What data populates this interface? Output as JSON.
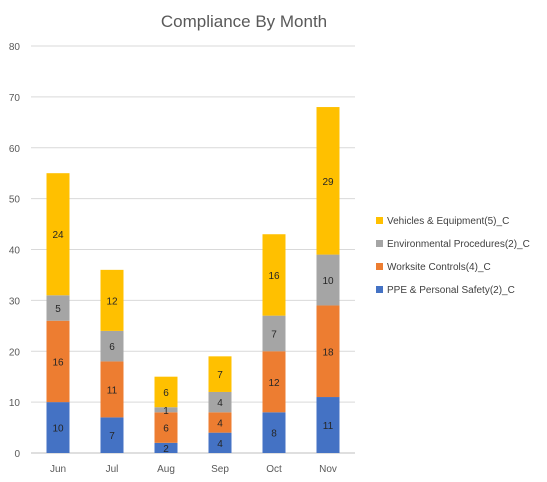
{
  "chart_data": {
    "type": "bar",
    "stacked": true,
    "title": "Compliance By Month",
    "xlabel": "",
    "ylabel": "",
    "categories": [
      "Jun",
      "Jul",
      "Aug",
      "Sep",
      "Oct",
      "Nov"
    ],
    "ylim": [
      0,
      80
    ],
    "yticks": [
      "0",
      "10",
      "20",
      "30",
      "40",
      "50",
      "60",
      "70",
      "80"
    ],
    "grid": true,
    "legend_position": "right",
    "series": [
      {
        "name": "PPE & Personal Safety(2)_C",
        "color": "#4472C4",
        "values": [
          10,
          7,
          2,
          4,
          8,
          11
        ]
      },
      {
        "name": "Worksite Controls(4)_C",
        "color": "#ED7D31",
        "values": [
          16,
          11,
          6,
          4,
          12,
          18
        ]
      },
      {
        "name": "Environmental Procedures(2)_C",
        "color": "#A5A5A5",
        "values": [
          5,
          6,
          1,
          4,
          7,
          10
        ]
      },
      {
        "name": "Vehicles & Equipment(5)_C",
        "color": "#FFC000",
        "values": [
          24,
          12,
          6,
          7,
          16,
          29
        ]
      }
    ]
  }
}
